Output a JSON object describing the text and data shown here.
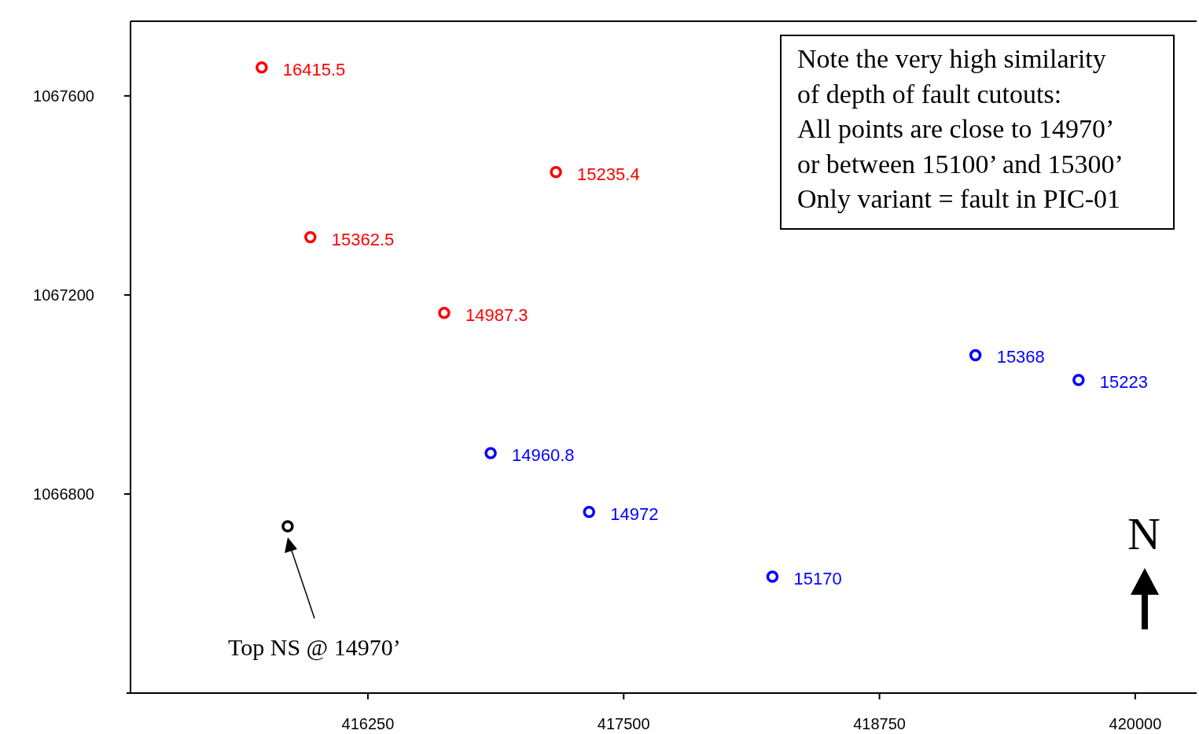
{
  "chart_data": {
    "type": "scatter",
    "xlim": [
      415090,
      420300
    ],
    "xticks": [
      416250,
      417500,
      418750,
      420000
    ],
    "ylim": [
      1066400,
      1067750
    ],
    "yticks": [
      1066800,
      1067200,
      1067600
    ],
    "grid": false,
    "marker": "circle",
    "series": [
      {
        "color": "#ff0000",
        "x": [
          415731,
          417169,
          415969,
          416623
        ],
        "values": [
          1067657,
          1067447,
          1067316,
          1067164
        ]
      },
      {
        "color": "#0000ff",
        "x": [
          419219,
          419723,
          416850,
          417331,
          418227
        ],
        "values": [
          1067079,
          1067029,
          1066882,
          1066764,
          1066634
        ]
      },
      {
        "color": "#000000",
        "x": [
          415858
        ],
        "values": [
          1066735
        ]
      }
    ],
    "annotations": [
      "Note the very high similarity\nof depth of fault cutouts:\nAll points are close to 14970’\nor between 15100’ and 15300’\nOnly variant = fault in PIC-01",
      "N",
      "Top NS @ 14970’",
      {
        "text": "16415.5",
        "x": 415731,
        "y": 1067657
      },
      {
        "text": "15235.4",
        "x": 417169,
        "y": 1067447
      },
      {
        "text": "15362.5",
        "x": 415969,
        "y": 1067316
      },
      {
        "text": "14987.3",
        "x": 416623,
        "y": 1067164
      },
      {
        "text": "15368",
        "x": 419219,
        "y": 1067079
      },
      {
        "text": "15223",
        "x": 419723,
        "y": 1067029
      },
      {
        "text": "14960.8",
        "x": 416850,
        "y": 1066882
      },
      {
        "text": "14972",
        "x": 417331,
        "y": 1066764
      },
      {
        "text": "15170",
        "x": 418227,
        "y": 1066634
      }
    ]
  }
}
